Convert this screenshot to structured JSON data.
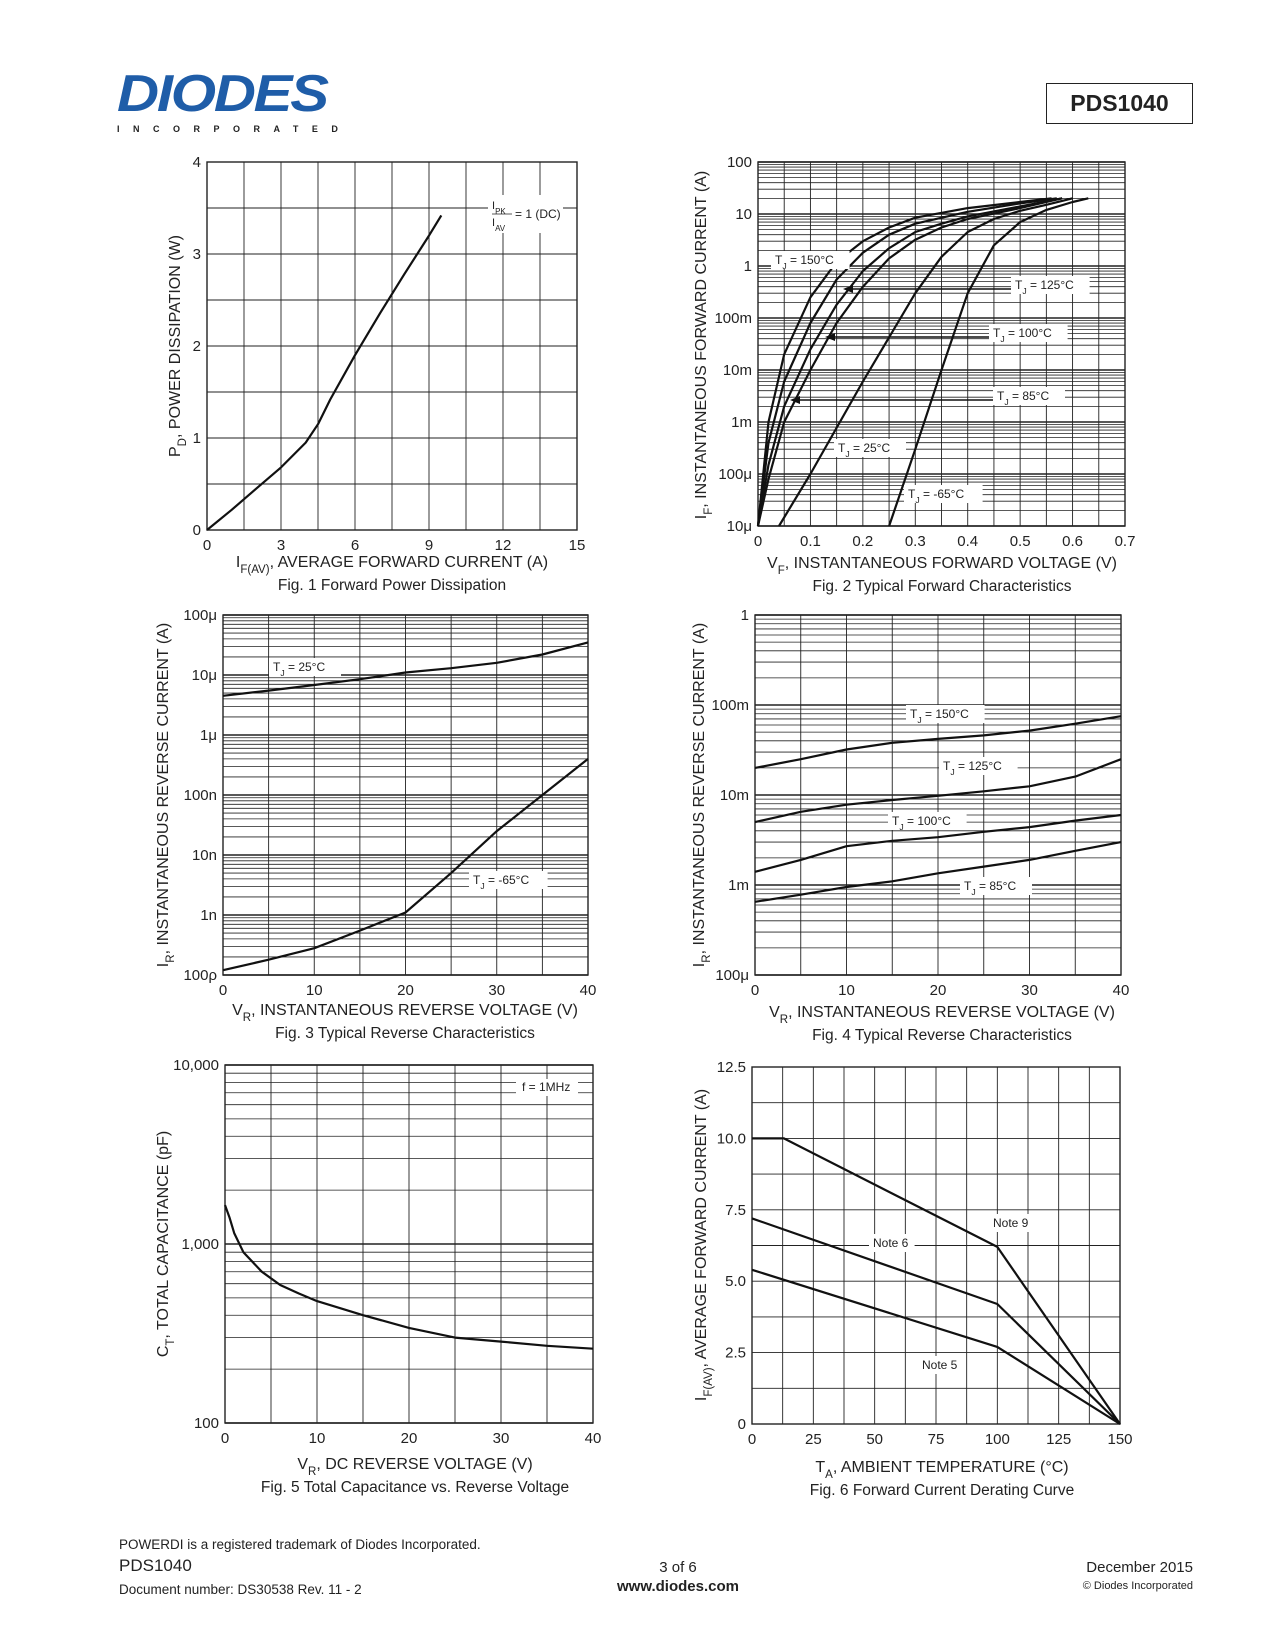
{
  "header": {
    "logo_text": "DIODES",
    "logo_subtext": "INCORPORATED",
    "part_number": "PDS1040",
    "brand_color": "#1f5da8"
  },
  "footer": {
    "trademark": "POWERDI is a registered trademark of Diodes Incorporated.",
    "part_number": "PDS1040",
    "document_number": "Document number: DS30538 Rev. 11 - 2",
    "page": "3 of 6",
    "website": "www.diodes.com",
    "date": "December 2015",
    "copyright": "© Diodes Incorporated"
  },
  "chart_data": [
    {
      "id": "fig1",
      "type": "line",
      "title": "Fig. 1  Forward Power Dissipation",
      "xlabel": "I_F(AV), AVERAGE FORWARD CURRENT (A)",
      "ylabel": "P_D, POWER DISSIPATION (W)",
      "xlim": [
        0,
        15
      ],
      "ylim": [
        0,
        4
      ],
      "xticks": [
        "0",
        "3",
        "6",
        "9",
        "12",
        "15"
      ],
      "yticks": [
        "0",
        "1",
        "2",
        "3",
        "4"
      ],
      "annotation": "I_PK / I_AV = 1 (DC)",
      "series": [
        {
          "name": "DC",
          "x": [
            0,
            1,
            2,
            3,
            4,
            4.5,
            5,
            6,
            7,
            8,
            9,
            9.5
          ],
          "y": [
            0,
            0.22,
            0.45,
            0.68,
            0.95,
            1.15,
            1.42,
            1.9,
            2.35,
            2.78,
            3.2,
            3.42
          ]
        }
      ]
    },
    {
      "id": "fig2",
      "type": "line",
      "title": "Fig. 2  Typical Forward Characteristics",
      "xlabel": "V_F, INSTANTANEOUS FORWARD VOLTAGE (V)",
      "ylabel": "I_F, INSTANTANEOUS FORWARD CURRENT (A)",
      "xlim": [
        0,
        0.7
      ],
      "yscale": "log",
      "ylim": [
        1e-05,
        100
      ],
      "xticks": [
        "0",
        "0.1",
        "0.2",
        "0.3",
        "0.4",
        "0.5",
        "0.6",
        "0.7"
      ],
      "yticks": [
        "10μ",
        "100μ",
        "1m",
        "10m",
        "100m",
        "1",
        "10",
        "100"
      ],
      "series": [
        {
          "name": "T_J = 150°C",
          "x": [
            0,
            0.02,
            0.05,
            0.1,
            0.15,
            0.2,
            0.25,
            0.3,
            0.4,
            0.5,
            0.56
          ],
          "y": [
            1e-05,
            0.001,
            0.02,
            0.25,
            1.2,
            3,
            5.5,
            8.5,
            13,
            17,
            20
          ]
        },
        {
          "name": "T_J = 125°C",
          "x": [
            0,
            0.02,
            0.05,
            0.1,
            0.15,
            0.2,
            0.25,
            0.3,
            0.4,
            0.5,
            0.57
          ],
          "y": [
            1e-05,
            0.0004,
            0.006,
            0.08,
            0.55,
            1.8,
            4,
            6.5,
            11,
            16,
            20
          ]
        },
        {
          "name": "T_J = 100°C",
          "x": [
            0,
            0.02,
            0.05,
            0.1,
            0.15,
            0.2,
            0.25,
            0.3,
            0.35,
            0.4,
            0.5,
            0.58
          ],
          "y": [
            1e-05,
            0.00015,
            0.002,
            0.025,
            0.18,
            0.8,
            2.2,
            4.5,
            6.5,
            9,
            14,
            20
          ]
        },
        {
          "name": "T_J = 85°C",
          "x": [
            0,
            0.02,
            0.05,
            0.1,
            0.15,
            0.2,
            0.25,
            0.3,
            0.35,
            0.4,
            0.5,
            0.58
          ],
          "y": [
            1e-05,
            8e-05,
            0.001,
            0.01,
            0.08,
            0.4,
            1.4,
            3.2,
            5.5,
            8,
            13,
            20
          ]
        },
        {
          "name": "T_J = 25°C",
          "x": [
            0.04,
            0.1,
            0.2,
            0.3,
            0.35,
            0.4,
            0.45,
            0.5,
            0.55,
            0.6
          ],
          "y": [
            1e-05,
            0.0001,
            0.006,
            0.3,
            1.5,
            4.5,
            8,
            11.5,
            15,
            20
          ]
        },
        {
          "name": "T_J = -65°C",
          "x": [
            0.25,
            0.3,
            0.35,
            0.4,
            0.45,
            0.5,
            0.55,
            0.6,
            0.63
          ],
          "y": [
            1e-05,
            0.0003,
            0.01,
            0.3,
            2.5,
            7,
            12,
            17,
            20
          ]
        }
      ]
    },
    {
      "id": "fig3",
      "type": "line",
      "title": "Fig. 3  Typical Reverse Characteristics",
      "xlabel": "V_R, INSTANTANEOUS REVERSE VOLTAGE (V)",
      "ylabel": "I_R, INSTANTANEOUS REVERSE CURRENT (A)",
      "xlim": [
        0,
        40
      ],
      "yscale": "log",
      "ylim": [
        1e-10,
        0.0001
      ],
      "xticks": [
        "0",
        "10",
        "20",
        "30",
        "40"
      ],
      "yticks": [
        "100ρ",
        "1n",
        "10n",
        "100n",
        "1μ",
        "10μ",
        "100μ"
      ],
      "series": [
        {
          "name": "T_J = 25°C",
          "x": [
            0,
            5,
            10,
            15,
            20,
            25,
            30,
            35,
            40
          ],
          "y": [
            4.5e-06,
            5.5e-06,
            6.8e-06,
            8.5e-06,
            1.1e-05,
            1.3e-05,
            1.6e-05,
            2.2e-05,
            3.5e-05
          ]
        },
        {
          "name": "T_J = -65°C",
          "x": [
            0,
            5,
            10,
            15,
            20,
            25,
            30,
            35,
            40
          ],
          "y": [
            1.2e-10,
            1.8e-10,
            2.8e-10,
            5.5e-10,
            1.1e-09,
            5e-09,
            2.5e-08,
            1e-07,
            4e-07
          ]
        }
      ]
    },
    {
      "id": "fig4",
      "type": "line",
      "title": "Fig. 4 Typical Reverse Characteristics",
      "xlabel": "V_R, INSTANTANEOUS REVERSE VOLTAGE (V)",
      "ylabel": "I_R, INSTANTANEOUS REVERSE CURRENT (A)",
      "xlim": [
        0,
        40
      ],
      "yscale": "log",
      "ylim": [
        0.0001,
        1
      ],
      "xticks": [
        "0",
        "10",
        "20",
        "30",
        "40"
      ],
      "yticks": [
        "100μ",
        "1m",
        "10m",
        "100m",
        "1"
      ],
      "series": [
        {
          "name": "T_J = 150°C",
          "x": [
            0,
            5,
            10,
            15,
            20,
            25,
            30,
            35,
            40
          ],
          "y": [
            0.02,
            0.025,
            0.032,
            0.038,
            0.042,
            0.046,
            0.052,
            0.062,
            0.075
          ]
        },
        {
          "name": "T_J = 125°C",
          "x": [
            0,
            5,
            10,
            15,
            20,
            25,
            30,
            35,
            40
          ],
          "y": [
            0.005,
            0.0065,
            0.0078,
            0.0088,
            0.0098,
            0.011,
            0.0125,
            0.016,
            0.025
          ]
        },
        {
          "name": "T_J = 100°C",
          "x": [
            0,
            5,
            10,
            15,
            20,
            25,
            30,
            35,
            40
          ],
          "y": [
            0.0014,
            0.0019,
            0.0027,
            0.0031,
            0.0034,
            0.0039,
            0.0044,
            0.0052,
            0.006
          ]
        },
        {
          "name": "T_J = 85°C",
          "x": [
            0,
            5,
            10,
            15,
            20,
            25,
            30,
            35,
            40
          ],
          "y": [
            0.00065,
            0.00078,
            0.00095,
            0.0011,
            0.00135,
            0.0016,
            0.0019,
            0.0024,
            0.003
          ]
        }
      ]
    },
    {
      "id": "fig5",
      "type": "line",
      "title": "Fig. 5 Total Capacitance vs. Reverse Voltage",
      "xlabel": "V_R, DC REVERSE VOLTAGE (V)",
      "ylabel": "C_T, TOTAL CAPACITANCE (pF)",
      "xlim": [
        0,
        40
      ],
      "yscale": "log",
      "ylim": [
        100,
        10000
      ],
      "xticks": [
        "0",
        "10",
        "20",
        "30",
        "40"
      ],
      "yticks": [
        "100",
        "1,000",
        "10,000"
      ],
      "annotation": "f = 1MHz",
      "series": [
        {
          "name": "C_T",
          "x": [
            0,
            0.5,
            1,
            2,
            4,
            6,
            8,
            10,
            15,
            20,
            25,
            30,
            35,
            40
          ],
          "y": [
            1650,
            1400,
            1150,
            900,
            700,
            590,
            530,
            480,
            400,
            340,
            300,
            285,
            270,
            260
          ]
        }
      ]
    },
    {
      "id": "fig6",
      "type": "line",
      "title": "Fig. 6  Forward Current Derating Curve",
      "xlabel": "T_A, AMBIENT TEMPERATURE (°C)",
      "ylabel": "I_F(AV), AVERAGE FORWARD CURRENT (A)",
      "xlim": [
        0,
        150
      ],
      "ylim": [
        0,
        12.5
      ],
      "xticks": [
        "0",
        "25",
        "50",
        "75",
        "100",
        "125",
        "150"
      ],
      "yticks": [
        "0",
        "2.5",
        "5.0",
        "7.5",
        "10.0",
        "12.5"
      ],
      "series": [
        {
          "name": "Note 9",
          "x": [
            0,
            13,
            100,
            150
          ],
          "y": [
            10,
            10,
            6.2,
            0
          ]
        },
        {
          "name": "Note 6",
          "x": [
            0,
            100,
            150
          ],
          "y": [
            7.2,
            4.2,
            0
          ]
        },
        {
          "name": "Note 5",
          "x": [
            0,
            100,
            150
          ],
          "y": [
            5.4,
            2.7,
            0
          ]
        }
      ]
    }
  ]
}
